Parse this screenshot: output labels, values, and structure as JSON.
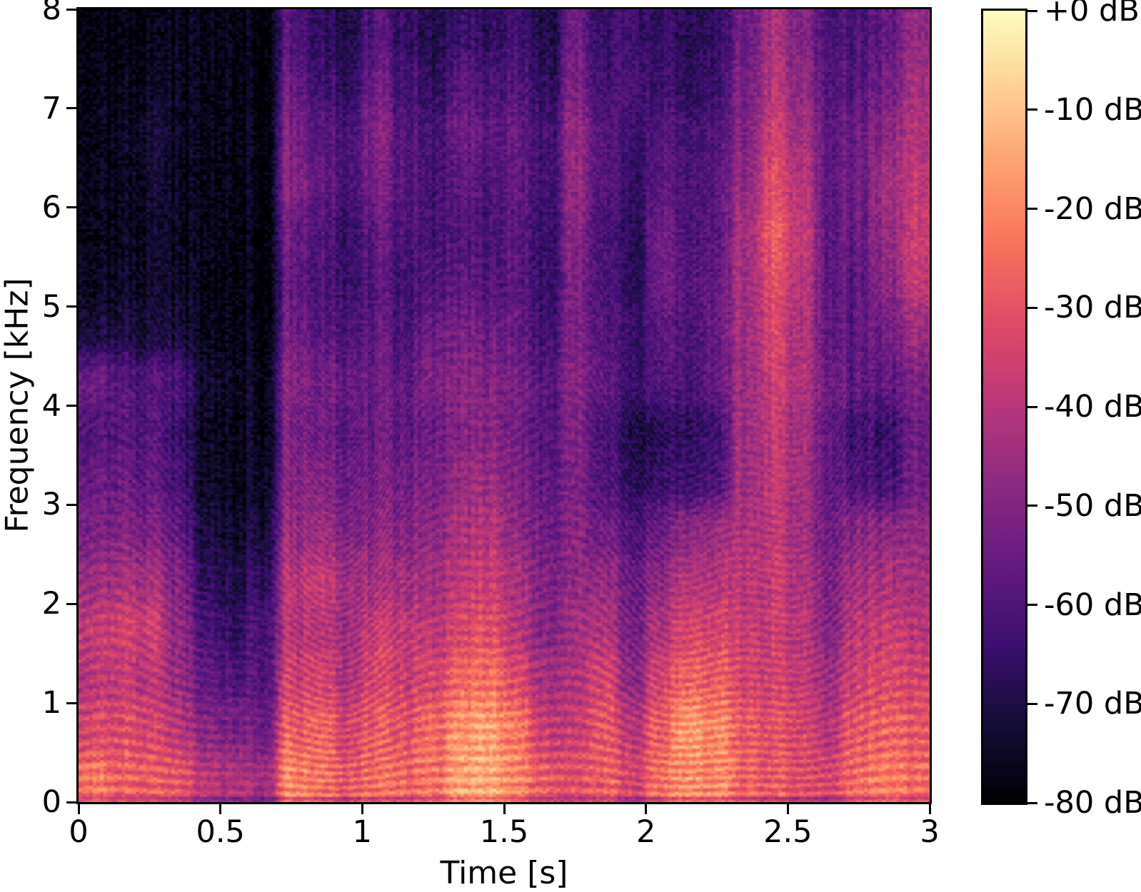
{
  "figure": {
    "background": "#ffffff",
    "text_color": "#000000"
  },
  "chart_data": {
    "type": "heatmap",
    "subtype": "spectrogram",
    "title": "",
    "xlabel": "Time [s]",
    "ylabel": "Frequency [kHz]",
    "x_range_s": [
      0,
      3
    ],
    "y_range_khz": [
      0,
      8
    ],
    "x_ticks": [
      0,
      0.5,
      1,
      1.5,
      2,
      2.5,
      3
    ],
    "x_tick_labels": [
      "0",
      "0.5",
      "1",
      "1.5",
      "2",
      "2.5",
      "3"
    ],
    "y_ticks": [
      0,
      1,
      2,
      3,
      4,
      5,
      6,
      7,
      8
    ],
    "y_tick_labels": [
      "0",
      "1",
      "2",
      "3",
      "4",
      "5",
      "6",
      "7",
      "8"
    ],
    "grid": false,
    "legend": "none",
    "colorbar": {
      "tick_values_db": [
        0,
        -10,
        -20,
        -30,
        -40,
        -50,
        -60,
        -70,
        -80
      ],
      "tick_labels": [
        "+0 dB",
        "-10 dB",
        "-20 dB",
        "-30 dB",
        "-40 dB",
        "-50 dB",
        "-60 dB",
        "-70 dB",
        "-80 dB"
      ],
      "range_db": [
        -80,
        0
      ],
      "position": "right"
    },
    "colormap": {
      "name": "magma",
      "stops": [
        [
          0.0,
          "#000004"
        ],
        [
          0.1,
          "#140e36"
        ],
        [
          0.2,
          "#3b0f70"
        ],
        [
          0.3,
          "#641a80"
        ],
        [
          0.4,
          "#8c2981"
        ],
        [
          0.5,
          "#b73779"
        ],
        [
          0.6,
          "#de4968"
        ],
        [
          0.7,
          "#f7705c"
        ],
        [
          0.8,
          "#fe9f6d"
        ],
        [
          0.9,
          "#fecf92"
        ],
        [
          1.0,
          "#fcfdbf"
        ]
      ]
    },
    "grid_db": {
      "description": "Coarse spectrogram power grid in dB. rows = frequency bands from 0 kHz (first row) to 8 kHz (last row), 0.5 kHz per row; cols = time frames, 0.1 s per col, 0 to 3 s.",
      "time_step_s": 0.1,
      "freq_step_khz": 0.5,
      "values": [
        [
          -24,
          -27,
          -29,
          -31,
          -40,
          -42,
          -44,
          -21,
          -24,
          -29,
          -25,
          -27,
          -23,
          -16,
          -14,
          -21,
          -29,
          -31,
          -27,
          -34,
          -24,
          -19,
          -21,
          -27,
          -29,
          -31,
          -34,
          -25,
          -23,
          -25
        ],
        [
          -34,
          -32,
          -34,
          -40,
          -50,
          -52,
          -54,
          -28,
          -27,
          -34,
          -29,
          -31,
          -25,
          -18,
          -16,
          -24,
          -37,
          -37,
          -29,
          -39,
          -27,
          -17,
          -21,
          -29,
          -31,
          -33,
          -39,
          -29,
          -27,
          -29
        ],
        [
          -40,
          -38,
          -40,
          -47,
          -58,
          -60,
          -58,
          -36,
          -35,
          -41,
          -34,
          -37,
          -33,
          -26,
          -24,
          -34,
          -44,
          -41,
          -34,
          -47,
          -34,
          -27,
          -29,
          -34,
          -35,
          -37,
          -44,
          -35,
          -33,
          -34
        ],
        [
          -38,
          -35,
          -36,
          -48,
          -62,
          -66,
          -60,
          -41,
          -40,
          -44,
          -37,
          -39,
          -39,
          -33,
          -31,
          -41,
          -49,
          -44,
          -41,
          -51,
          -41,
          -34,
          -35,
          -37,
          -37,
          -39,
          -49,
          -39,
          -37,
          -39
        ],
        [
          -46,
          -43,
          -44,
          -52,
          -67,
          -70,
          -65,
          -40,
          -38,
          -44,
          -44,
          -45,
          -43,
          -38,
          -36,
          -44,
          -51,
          -47,
          -47,
          -54,
          -47,
          -41,
          -41,
          -39,
          -37,
          -41,
          -51,
          -44,
          -43,
          -43
        ],
        [
          -52,
          -50,
          -52,
          -58,
          -72,
          -74,
          -70,
          -47,
          -45,
          -51,
          -49,
          -51,
          -47,
          -42,
          -40,
          -49,
          -54,
          -49,
          -54,
          -59,
          -54,
          -49,
          -47,
          -41,
          -39,
          -43,
          -54,
          -49,
          -49,
          -47
        ],
        [
          -56,
          -55,
          -57,
          -63,
          -75,
          -76,
          -73,
          -50,
          -50,
          -54,
          -52,
          -54,
          -51,
          -46,
          -45,
          -52,
          -57,
          -51,
          -59,
          -66,
          -64,
          -65,
          -61,
          -44,
          -39,
          -43,
          -57,
          -61,
          -63,
          -54
        ],
        [
          -60,
          -58,
          -60,
          -66,
          -76,
          -77,
          -75,
          -52,
          -54,
          -57,
          -55,
          -57,
          -54,
          -50,
          -48,
          -55,
          -59,
          -51,
          -61,
          -68,
          -67,
          -67,
          -63,
          -44,
          -39,
          -43,
          -57,
          -63,
          -65,
          -54
        ],
        [
          -55,
          -58,
          -60,
          -62,
          -74,
          -76,
          -74,
          -50,
          -53,
          -55,
          -55,
          -57,
          -50,
          -48,
          -50,
          -54,
          -59,
          -49,
          -57,
          -63,
          -59,
          -61,
          -57,
          -44,
          -37,
          -41,
          -54,
          -57,
          -57,
          -51
        ],
        [
          -72,
          -70,
          -72,
          -73,
          -77,
          -78,
          -77,
          -54,
          -58,
          -60,
          -57,
          -61,
          -54,
          -52,
          -54,
          -57,
          -63,
          -51,
          -59,
          -63,
          -57,
          -61,
          -57,
          -43,
          -35,
          -41,
          -57,
          -57,
          -54,
          -45
        ],
        [
          -76,
          -75,
          -75,
          -76,
          -78,
          -78,
          -78,
          -57,
          -61,
          -64,
          -59,
          -63,
          -59,
          -57,
          -59,
          -59,
          -65,
          -51,
          -61,
          -66,
          -54,
          -59,
          -57,
          -43,
          -33,
          -39,
          -57,
          -57,
          -49,
          -38
        ],
        [
          -77,
          -76,
          -75,
          -77,
          -78,
          -78,
          -78,
          -55,
          -59,
          -64,
          -57,
          -61,
          -61,
          -59,
          -61,
          -59,
          -65,
          -49,
          -61,
          -66,
          -54,
          -61,
          -59,
          -43,
          -29,
          -37,
          -57,
          -55,
          -47,
          -36
        ],
        [
          -77,
          -76,
          -74,
          -77,
          -78,
          -78,
          -77,
          -50,
          -56,
          -61,
          -53,
          -59,
          -61,
          -57,
          -59,
          -57,
          -63,
          -47,
          -59,
          -64,
          -57,
          -61,
          -59,
          -46,
          -33,
          -39,
          -57,
          -54,
          -45,
          -38
        ],
        [
          -77,
          -76,
          -73,
          -76,
          -78,
          -78,
          -77,
          -52,
          -58,
          -61,
          -51,
          -59,
          -61,
          -54,
          -57,
          -57,
          -63,
          -47,
          -59,
          -62,
          -59,
          -63,
          -61,
          -49,
          -37,
          -43,
          -57,
          -55,
          -49,
          -41
        ],
        [
          -78,
          -77,
          -76,
          -77,
          -78,
          -78,
          -78,
          -56,
          -63,
          -66,
          -55,
          -63,
          -65,
          -58,
          -61,
          -61,
          -67,
          -51,
          -63,
          -60,
          -63,
          -67,
          -65,
          -51,
          -41,
          -47,
          -59,
          -59,
          -54,
          -43
        ],
        [
          -78,
          -78,
          -78,
          -78,
          -78,
          -78,
          -78,
          -60,
          -66,
          -69,
          -60,
          -66,
          -68,
          -64,
          -66,
          -64,
          -70,
          -54,
          -65,
          -62,
          -65,
          -69,
          -67,
          -54,
          -44,
          -49,
          -61,
          -61,
          -57,
          -47
        ]
      ]
    }
  }
}
